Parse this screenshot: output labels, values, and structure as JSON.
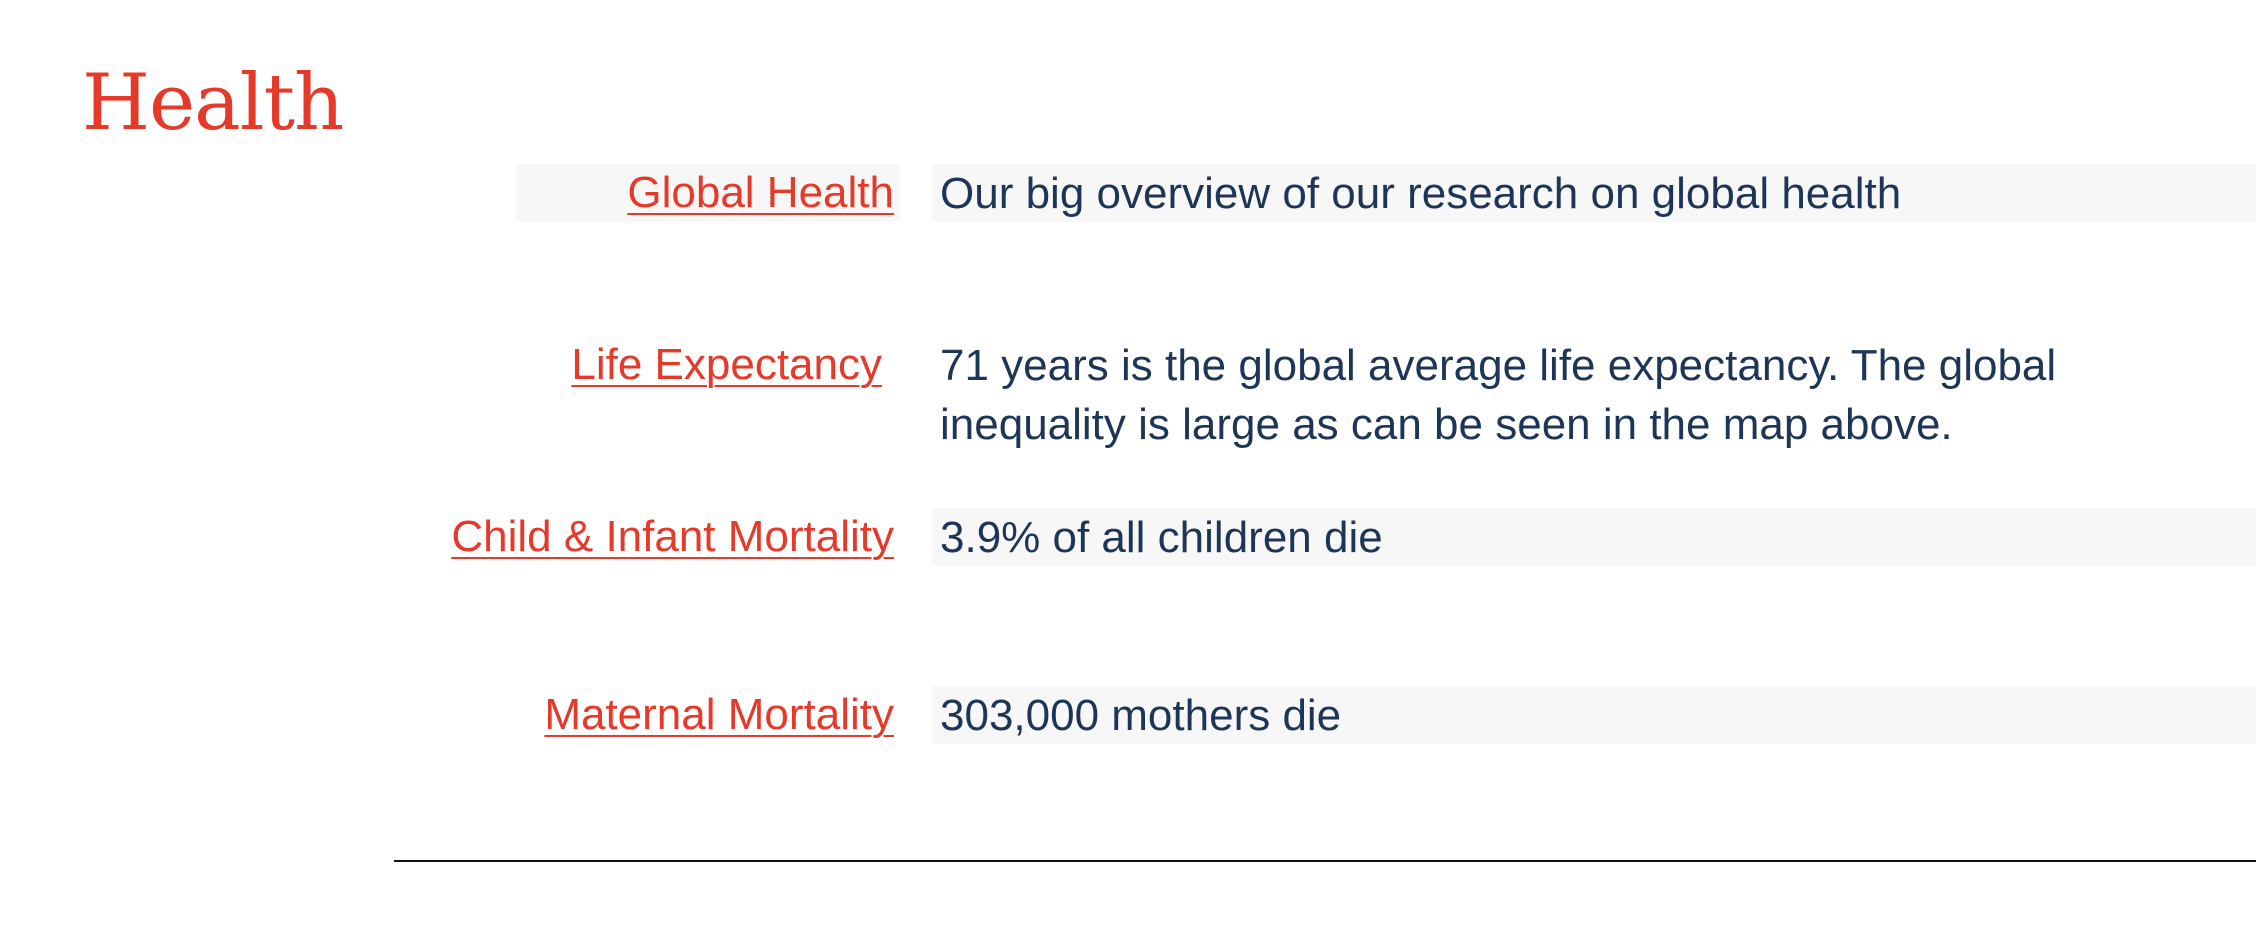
{
  "section": {
    "title": "Health"
  },
  "topics": [
    {
      "link_label": "Global Health",
      "description": "Our big overview of our research on global health"
    },
    {
      "link_label": "Life Expectancy",
      "description": "71 years is the global average life expectancy. The global inequality is large as can be seen in the map above."
    },
    {
      "link_label": "Child & Infant Mortality",
      "description": "3.9% of all children die"
    },
    {
      "link_label": "Maternal Mortality",
      "description": "303,000 mothers die"
    }
  ],
  "colors": {
    "accent": "#e5392a",
    "text": "#1d3557",
    "row_shade": "#f7f7f7",
    "divider": "#111111"
  }
}
